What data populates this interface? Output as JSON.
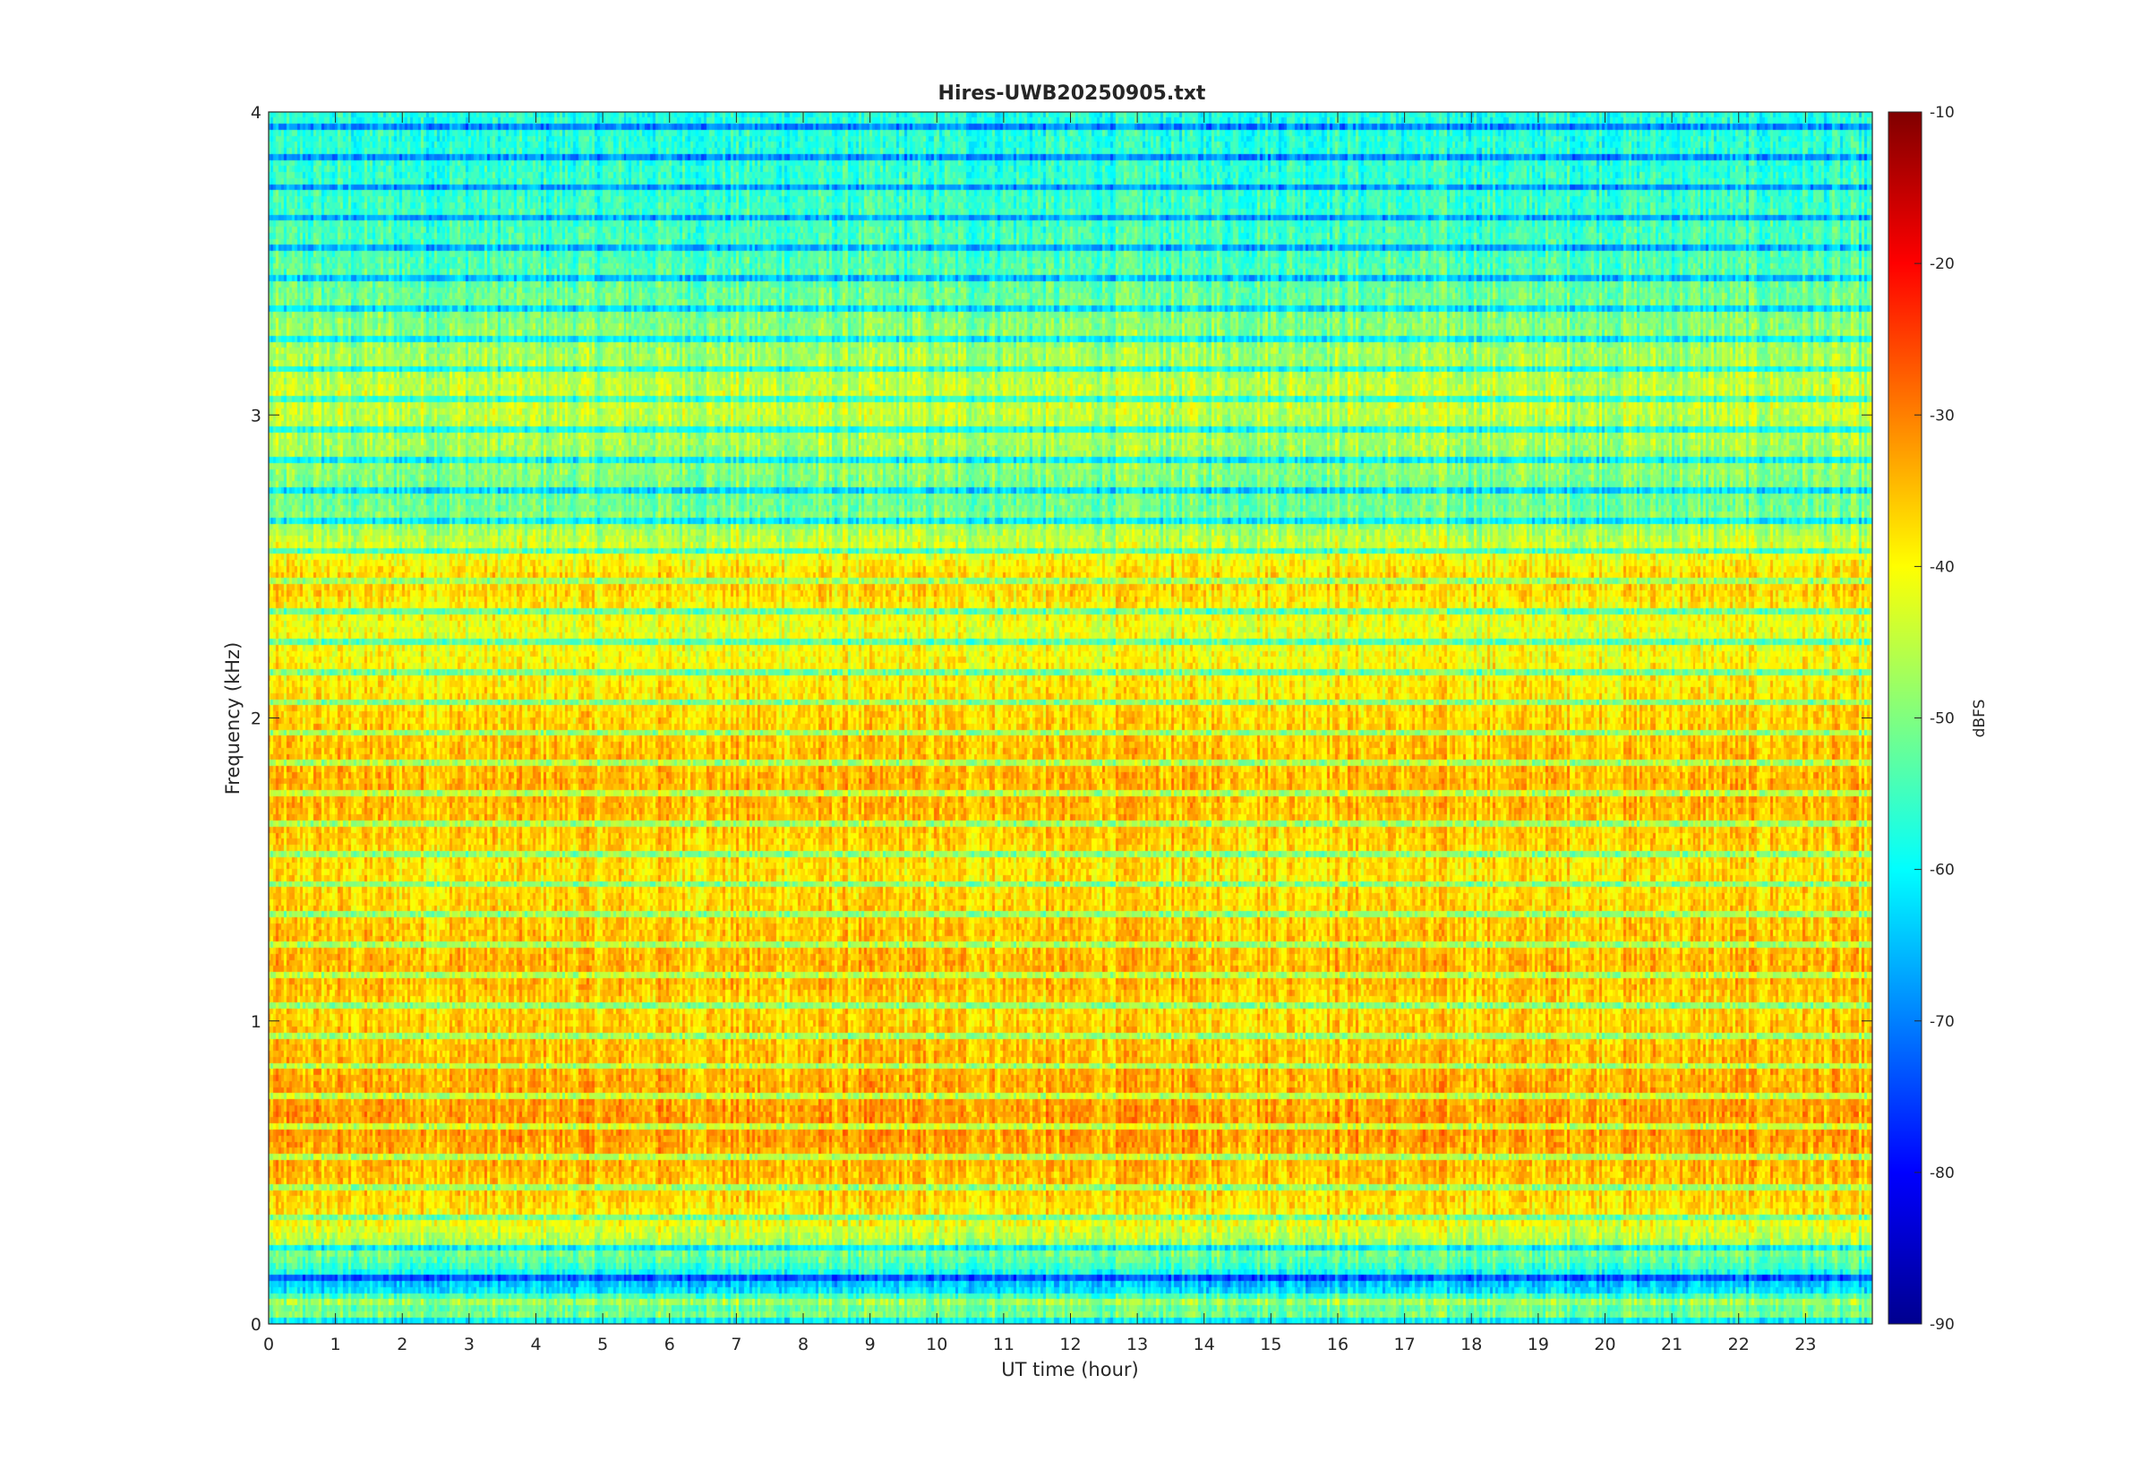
{
  "chart_data": {
    "type": "heatmap",
    "title": "Hires-UWB20250905.txt",
    "xlabel": "UT time (hour)",
    "ylabel": "Frequency (kHz)",
    "xlim": [
      0,
      24
    ],
    "ylim": [
      0,
      4
    ],
    "x_ticks": [
      0,
      1,
      2,
      3,
      4,
      5,
      6,
      7,
      8,
      9,
      10,
      11,
      12,
      13,
      14,
      15,
      16,
      17,
      18,
      19,
      20,
      21,
      22,
      23
    ],
    "y_ticks": [
      0,
      1,
      2,
      3,
      4
    ],
    "colorbar": {
      "label": "dBFS",
      "range": [
        -90,
        -10
      ],
      "ticks": [
        -90,
        -80,
        -70,
        -60,
        -50,
        -40,
        -30,
        -20,
        -10
      ],
      "colormap": "jet",
      "placement": "right"
    },
    "grid": false,
    "band_profile_khz": [
      {
        "f": 0.0,
        "level": -72
      },
      {
        "f": 0.05,
        "level": -46
      },
      {
        "f": 0.12,
        "level": -72
      },
      {
        "f": 0.2,
        "level": -60
      },
      {
        "f": 0.35,
        "level": -45
      },
      {
        "f": 0.45,
        "level": -42
      },
      {
        "f": 0.65,
        "level": -38
      },
      {
        "f": 1.05,
        "level": -43
      },
      {
        "f": 1.15,
        "level": -40
      },
      {
        "f": 1.5,
        "level": -44
      },
      {
        "f": 1.75,
        "level": -40
      },
      {
        "f": 1.95,
        "level": -42
      },
      {
        "f": 2.3,
        "level": -48
      },
      {
        "f": 2.45,
        "level": -42
      },
      {
        "f": 2.7,
        "level": -58
      },
      {
        "f": 3.05,
        "level": -50
      },
      {
        "f": 3.5,
        "level": -60
      },
      {
        "f": 4.0,
        "level": -64
      }
    ]
  }
}
